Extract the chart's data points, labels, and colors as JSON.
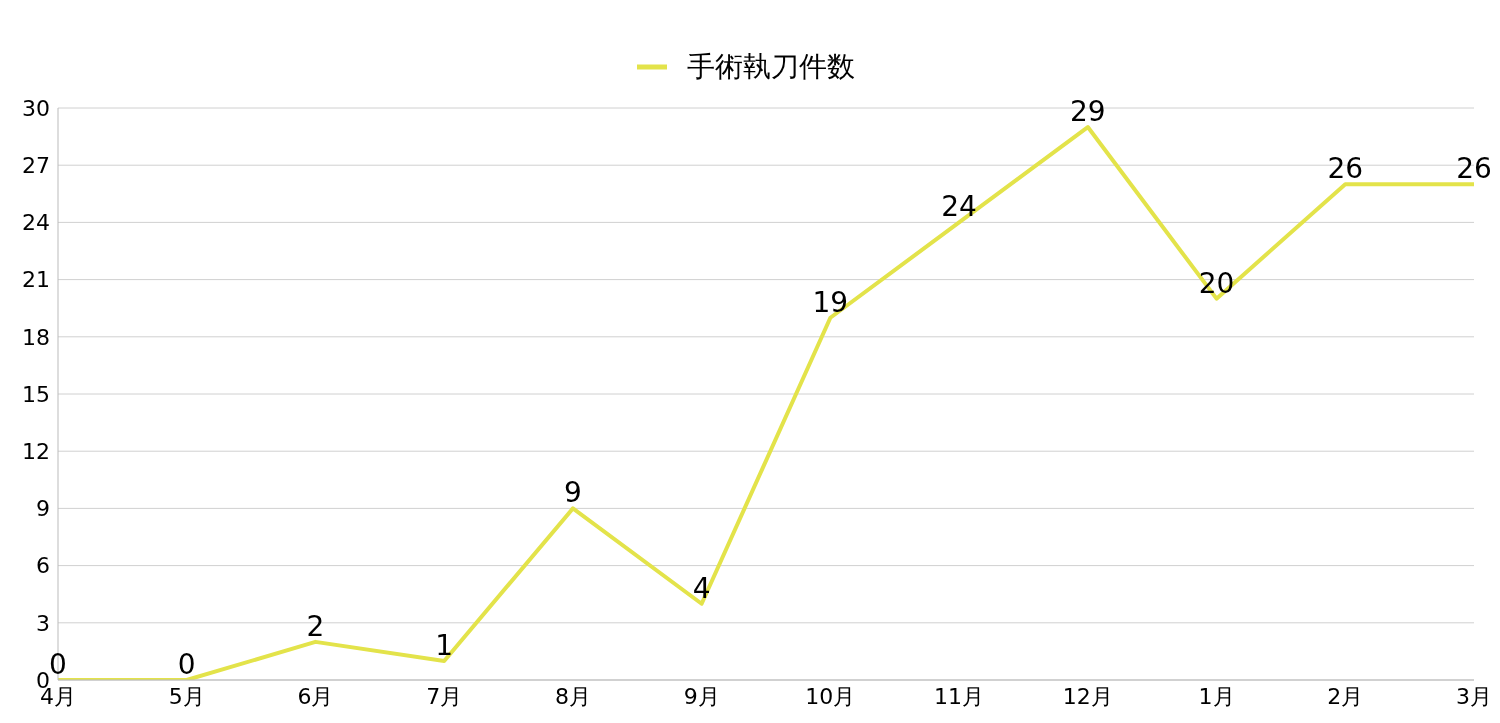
{
  "chart_data": {
    "type": "line",
    "categories": [
      "4月",
      "5月",
      "6月",
      "7月",
      "8月",
      "9月",
      "10月",
      "11月",
      "12月",
      "1月",
      "2月",
      "3月"
    ],
    "series": [
      {
        "name": "手術執刀件数",
        "color": "#e3e34a",
        "values": [
          0,
          0,
          2,
          1,
          9,
          4,
          19,
          24,
          29,
          20,
          26,
          26
        ]
      }
    ],
    "ylim": [
      0,
      30
    ],
    "yticks": [
      0,
      3,
      6,
      9,
      12,
      15,
      18,
      21,
      24,
      27,
      30
    ],
    "grid": "y",
    "legend": "top",
    "marker": "none",
    "line_style": "solid",
    "data_labels": true
  }
}
